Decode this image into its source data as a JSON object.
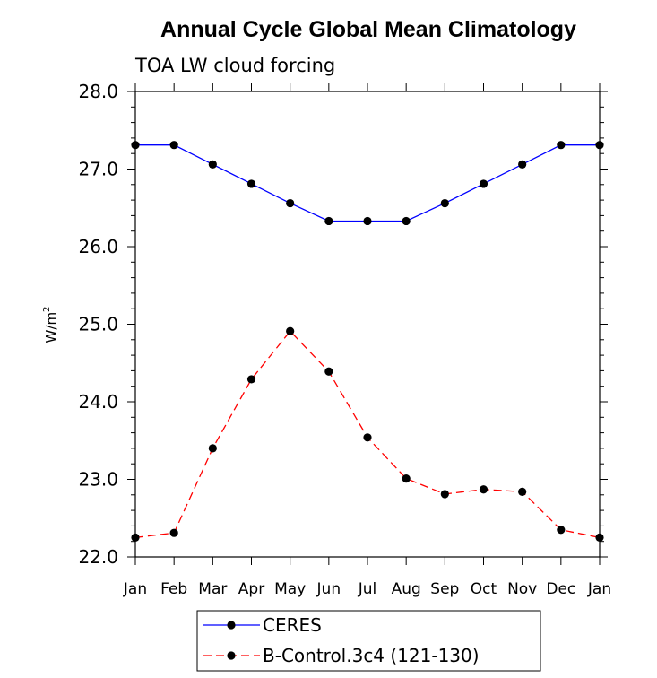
{
  "chart_data": {
    "type": "line",
    "title": "Annual Cycle Global Mean Climatology",
    "subtitle": "TOA LW cloud forcing",
    "ylabel": "W/m",
    "ylabel_sup": "2",
    "xlabel": "",
    "ylim": [
      22.0,
      28.0
    ],
    "yticks": [
      22.0,
      23.0,
      24.0,
      25.0,
      26.0,
      27.0,
      28.0
    ],
    "ytick_labels": [
      "22.0",
      "23.0",
      "24.0",
      "25.0",
      "26.0",
      "27.0",
      "28.0"
    ],
    "categories": [
      "Jan",
      "Feb",
      "Mar",
      "Apr",
      "May",
      "Jun",
      "Jul",
      "Aug",
      "Sep",
      "Oct",
      "Nov",
      "Dec",
      "Jan"
    ],
    "series": [
      {
        "name": "CERES",
        "color": "#0000ff",
        "dash": "solid",
        "values": [
          27.31,
          27.31,
          27.06,
          26.81,
          26.56,
          26.33,
          26.33,
          26.33,
          26.56,
          26.81,
          27.06,
          27.31,
          27.31
        ]
      },
      {
        "name": "B-Control.3c4 (121-130)",
        "color": "#ff0000",
        "dash": "dashed",
        "values": [
          22.25,
          22.31,
          23.4,
          24.29,
          24.91,
          24.39,
          23.54,
          23.01,
          22.81,
          22.87,
          22.84,
          22.35,
          22.25
        ]
      }
    ],
    "legend": "bottom-center",
    "grid": false
  }
}
